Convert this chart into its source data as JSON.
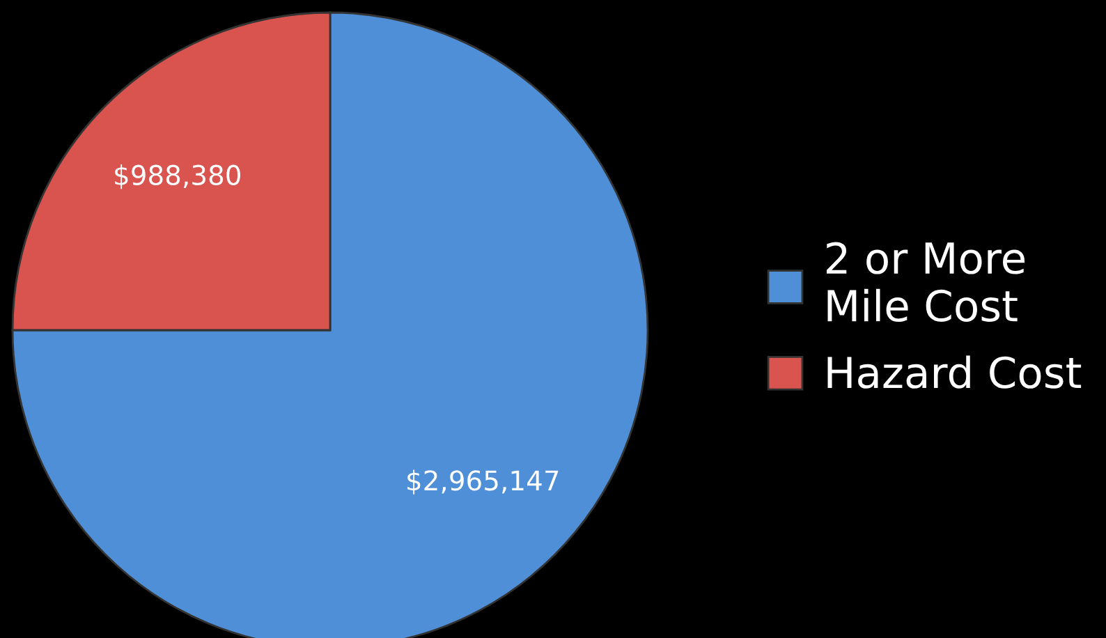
{
  "chart_data": {
    "type": "pie",
    "categories": [
      "2 or More\nMile Cost",
      "Hazard Cost"
    ],
    "values": [
      2965147,
      988380
    ],
    "colors": [
      "#4f8fd8",
      "#d9534f"
    ],
    "value_labels": [
      "$2,965,147",
      "$988,380"
    ],
    "legend": "right"
  }
}
